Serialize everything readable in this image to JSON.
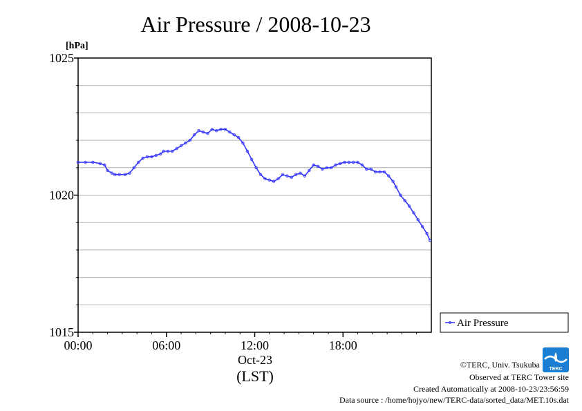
{
  "chart_data": {
    "type": "line",
    "title": "Air Pressure / 2008-10-23",
    "ylabel": "[hPa]",
    "ylim": [
      1015,
      1025
    ],
    "xlim": [
      0,
      24
    ],
    "yticks": [
      1015,
      1020,
      1025
    ],
    "xticks": [
      {
        "hour": 0,
        "label": "00:00"
      },
      {
        "hour": 6,
        "label": "06:00"
      },
      {
        "hour": 12,
        "label": "12:00"
      },
      {
        "hour": 18,
        "label": "18:00"
      }
    ],
    "xsublabel": "Oct-23",
    "xlabel": "(LST)",
    "grid": true,
    "legend_position": "right",
    "series": [
      {
        "name": "Air Pressure",
        "color": "#3333ff",
        "x": [
          0.0,
          0.5,
          1.0,
          1.5,
          1.8,
          2.0,
          2.3,
          2.5,
          2.8,
          3.2,
          3.5,
          3.8,
          4.1,
          4.4,
          4.7,
          5.0,
          5.3,
          5.6,
          5.8,
          6.1,
          6.4,
          6.7,
          7.0,
          7.3,
          7.6,
          7.9,
          8.2,
          8.5,
          8.8,
          9.1,
          9.4,
          9.7,
          10.0,
          10.3,
          10.6,
          10.9,
          11.2,
          11.5,
          11.8,
          12.1,
          12.4,
          12.7,
          13.0,
          13.3,
          13.6,
          13.9,
          14.2,
          14.5,
          14.8,
          15.1,
          15.4,
          15.7,
          16.0,
          16.3,
          16.6,
          16.9,
          17.2,
          17.5,
          17.8,
          18.1,
          18.4,
          18.7,
          19.0,
          19.3,
          19.6,
          19.9,
          20.2,
          20.5,
          20.8,
          21.1,
          21.4,
          21.6,
          21.9,
          22.2,
          22.5,
          22.8,
          23.1,
          23.4,
          23.7,
          23.9
        ],
        "y": [
          1021.2,
          1021.2,
          1021.2,
          1021.15,
          1021.1,
          1020.9,
          1020.8,
          1020.75,
          1020.75,
          1020.75,
          1020.8,
          1021.0,
          1021.2,
          1021.35,
          1021.4,
          1021.4,
          1021.45,
          1021.5,
          1021.6,
          1021.6,
          1021.6,
          1021.7,
          1021.8,
          1021.9,
          1022.0,
          1022.2,
          1022.35,
          1022.3,
          1022.25,
          1022.4,
          1022.35,
          1022.4,
          1022.4,
          1022.3,
          1022.2,
          1022.1,
          1021.9,
          1021.6,
          1021.3,
          1021.0,
          1020.75,
          1020.6,
          1020.55,
          1020.5,
          1020.6,
          1020.75,
          1020.7,
          1020.65,
          1020.75,
          1020.8,
          1020.7,
          1020.9,
          1021.1,
          1021.05,
          1020.95,
          1021.0,
          1021.0,
          1021.1,
          1021.15,
          1021.2,
          1021.2,
          1021.2,
          1021.2,
          1021.1,
          1020.95,
          1020.95,
          1020.85,
          1020.85,
          1020.85,
          1020.7,
          1020.5,
          1020.3,
          1020.0,
          1019.8,
          1019.6,
          1019.35,
          1019.1,
          1018.85,
          1018.6,
          1018.35
        ]
      }
    ]
  },
  "footer": {
    "line1": "©TERC, Univ. Tsukuba",
    "line2": "Observed at TERC Tower site",
    "line3": "Created Automatically at 2008-10-23/23:56:59",
    "line4": "Data source : /home/hojyo/new/TERC-data/sorted_data/MET.10s.dat",
    "logo_text": "TERC",
    "logo_color": "#1a7fd4"
  }
}
